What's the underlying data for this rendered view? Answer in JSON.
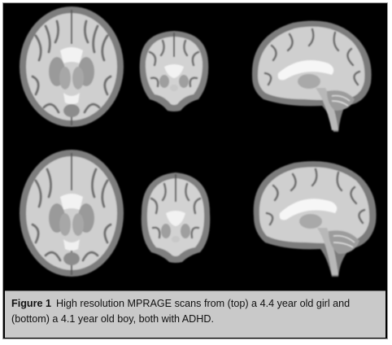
{
  "figure": {
    "label": "Figure 1",
    "caption": "High resolution MPRAGE scans from (top) a 4.4 year old girl and (bottom) a 4.1 year old boy, both with ADHD."
  },
  "colors": {
    "background": "#000000",
    "caption_bg": "#c9c9c9",
    "white_matter": "#ededed",
    "gray_matter": "#8a8a8a"
  },
  "scans": [
    {
      "subject": "top",
      "view": "axial"
    },
    {
      "subject": "top",
      "view": "coronal"
    },
    {
      "subject": "top",
      "view": "sagittal"
    },
    {
      "subject": "bottom",
      "view": "axial"
    },
    {
      "subject": "bottom",
      "view": "coronal"
    },
    {
      "subject": "bottom",
      "view": "sagittal"
    }
  ]
}
